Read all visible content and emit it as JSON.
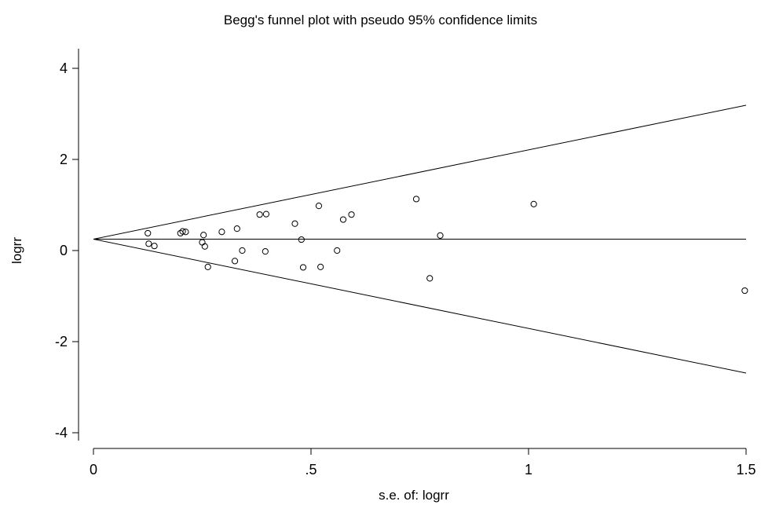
{
  "chart_data": {
    "type": "scatter",
    "title": "Begg's funnel plot with pseudo 95% confidence limits",
    "xlabel": "s.e. of: logrr",
    "ylabel": "logrr",
    "xlim": [
      0,
      1.5
    ],
    "ylim": [
      -4.3,
      4.3
    ],
    "x_ticks": [
      0,
      0.5,
      1,
      1.5
    ],
    "x_tick_labels": [
      "0",
      ".5",
      "1",
      "1.5"
    ],
    "y_ticks": [
      4,
      2,
      0,
      -2,
      -4
    ],
    "y_tick_labels": [
      "4",
      "2",
      "0",
      "-2",
      "-4"
    ],
    "pooled_estimate": 0.25,
    "confidence_limits": {
      "upper": [
        [
          0,
          0.25
        ],
        [
          1.5,
          3.19
        ]
      ],
      "lower": [
        [
          0,
          0.25
        ],
        [
          1.5,
          -2.69
        ]
      ]
    },
    "points": [
      {
        "x": 0.125,
        "y": 0.38
      },
      {
        "x": 0.127,
        "y": 0.15
      },
      {
        "x": 0.14,
        "y": 0.1
      },
      {
        "x": 0.2,
        "y": 0.38
      },
      {
        "x": 0.205,
        "y": 0.42
      },
      {
        "x": 0.212,
        "y": 0.41
      },
      {
        "x": 0.25,
        "y": 0.18
      },
      {
        "x": 0.253,
        "y": 0.34
      },
      {
        "x": 0.256,
        "y": 0.09
      },
      {
        "x": 0.263,
        "y": -0.36
      },
      {
        "x": 0.295,
        "y": 0.41
      },
      {
        "x": 0.325,
        "y": -0.23
      },
      {
        "x": 0.33,
        "y": 0.48
      },
      {
        "x": 0.342,
        "y": 0.0
      },
      {
        "x": 0.382,
        "y": 0.79
      },
      {
        "x": 0.395,
        "y": -0.02
      },
      {
        "x": 0.397,
        "y": 0.8
      },
      {
        "x": 0.463,
        "y": 0.59
      },
      {
        "x": 0.478,
        "y": 0.24
      },
      {
        "x": 0.482,
        "y": -0.37
      },
      {
        "x": 0.518,
        "y": 0.98
      },
      {
        "x": 0.522,
        "y": -0.36
      },
      {
        "x": 0.56,
        "y": 0.0
      },
      {
        "x": 0.574,
        "y": 0.68
      },
      {
        "x": 0.593,
        "y": 0.79
      },
      {
        "x": 0.742,
        "y": 1.13
      },
      {
        "x": 0.773,
        "y": -0.61
      },
      {
        "x": 0.797,
        "y": 0.33
      },
      {
        "x": 1.012,
        "y": 1.02
      },
      {
        "x": 1.497,
        "y": -0.88
      }
    ]
  }
}
